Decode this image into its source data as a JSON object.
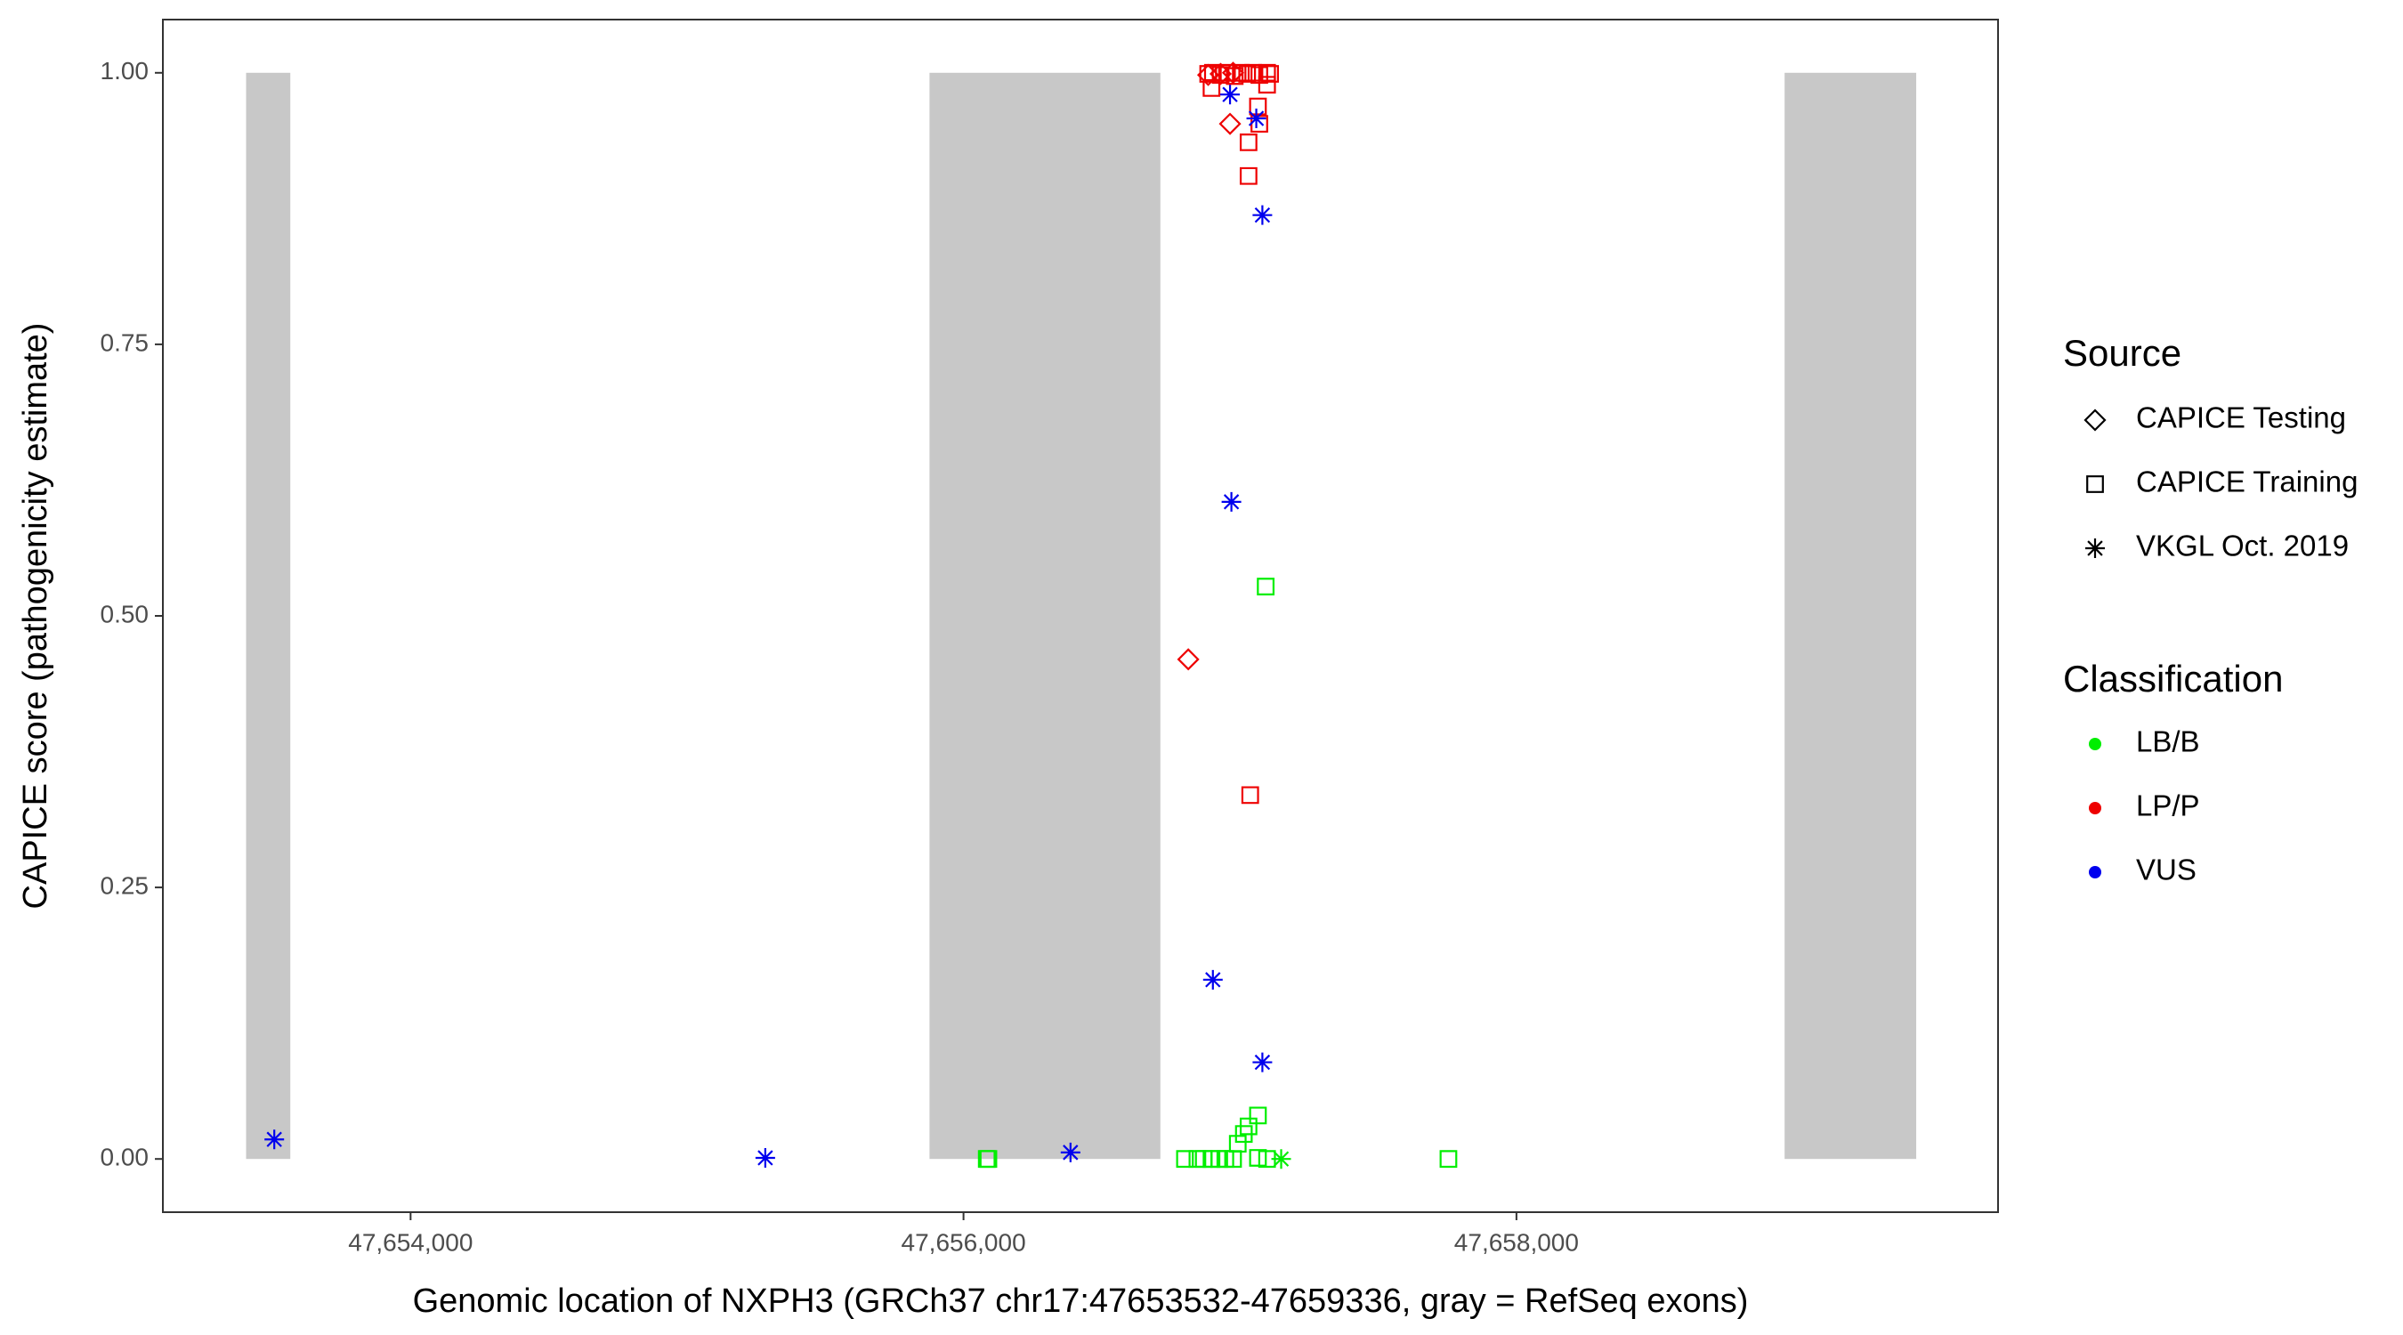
{
  "chart_data": {
    "type": "scatter",
    "x_label": "Genomic location of NXPH3 (GRCh37 chr17:47653532-47659336, gray = RefSeq exons)",
    "y_label": "CAPICE score (pathogenicity estimate)",
    "xlim": [
      47653104,
      47659742
    ],
    "ylim": [
      -0.049,
      1.049
    ],
    "xticks": [
      {
        "value": 47654000,
        "label": "47,654,000"
      },
      {
        "value": 47656000,
        "label": "47,656,000"
      },
      {
        "value": 47658000,
        "label": "47,658,000"
      }
    ],
    "yticks": [
      {
        "value": 0,
        "label": "0.00"
      },
      {
        "value": 0.25,
        "label": "0.25"
      },
      {
        "value": 0.5,
        "label": "0.50"
      },
      {
        "value": 0.75,
        "label": "0.75"
      },
      {
        "value": 1,
        "label": "1.00"
      }
    ],
    "exons": [
      [
        47653405,
        47653565
      ],
      [
        47655877,
        47656712
      ],
      [
        47658970,
        47659446
      ]
    ],
    "exon_y": [
      0,
      1
    ],
    "exon_color": "#c8c8c8",
    "shape_legend": {
      "title": "Source",
      "items": [
        {
          "label": "CAPICE Testing",
          "shape": "diamond"
        },
        {
          "label": "CAPICE Training",
          "shape": "square"
        },
        {
          "label": "VKGL Oct. 2019",
          "shape": "asterisk"
        }
      ]
    },
    "color_legend": {
      "title": "Classification",
      "items": [
        {
          "label": "LB/B",
          "color": "#00ee00"
        },
        {
          "label": "LP/P",
          "color": "#ee0000"
        },
        {
          "label": "VUS",
          "color": "#0000ee"
        }
      ]
    },
    "series": [
      {
        "shape": "diamond",
        "color": "#ee0000",
        "x": [
          47656813,
          47656964,
          47656885,
          47656930,
          47656975
        ],
        "y": [
          0.46,
          0.953,
          0.998,
          0.999,
          1.0
        ]
      },
      {
        "shape": "square",
        "color": "#ee0000",
        "x": [
          47657037,
          47657031,
          47657031,
          47657065,
          47657070,
          47656885,
          47656902,
          47656930,
          47656953,
          47656981,
          47657003,
          47657026,
          47657048,
          47657070,
          47657098,
          47657109,
          47656897,
          47657098
        ],
        "y": [
          0.335,
          0.905,
          0.936,
          0.969,
          0.953,
          0.999,
          1.0,
          0.998,
          1.0,
          0.997,
          1.0,
          0.999,
          1.0,
          0.998,
          1.0,
          0.999,
          0.986,
          0.989
        ]
      },
      {
        "shape": "square",
        "color": "#00ee00",
        "x": [
          47656084,
          47656090,
          47656801,
          47656846,
          47656869,
          47656897,
          47656925,
          47656947,
          47656975,
          47656992,
          47657014,
          47657031,
          47657065,
          47657065,
          47657098,
          47657093,
          47657754
        ],
        "y": [
          0,
          0,
          0,
          0,
          0,
          0,
          0,
          0,
          0,
          0.014,
          0.023,
          0.03,
          0.04,
          0.001,
          0,
          0.527,
          0
        ]
      },
      {
        "shape": "asterisk",
        "color": "#00ee00",
        "x": [
          47657149
        ],
        "y": [
          0
        ]
      },
      {
        "shape": "asterisk",
        "color": "#0000ee",
        "x": [
          47653507,
          47655283,
          47656387,
          47656902,
          47656964,
          47656969,
          47657059,
          47657081,
          47657081
        ],
        "y": [
          0.018,
          0.001,
          0.006,
          0.165,
          0.98,
          0.605,
          0.958,
          0.869,
          0.089
        ]
      }
    ]
  }
}
